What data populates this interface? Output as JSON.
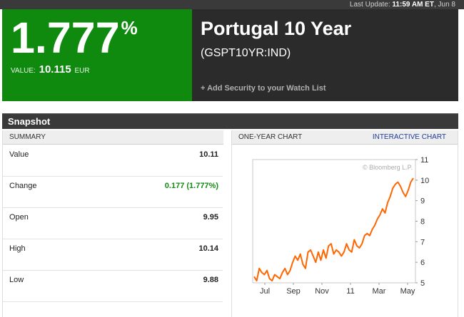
{
  "top_bar": {
    "prefix": "Last Update:",
    "time": "11:59 AM ET",
    "date": ", Jun 8"
  },
  "quote": {
    "change_pct": "1.777",
    "pct_symbol": "%",
    "value_label": "VALUE:",
    "value": "10.115",
    "currency": "EUR"
  },
  "security": {
    "name": "Portugal 10 Year",
    "ticker": "(GSPT10YR:IND)",
    "watch_link": "+ Add Security to your Watch List"
  },
  "snapshot": {
    "title": "Snapshot",
    "summary_header": "SUMMARY",
    "rows": [
      {
        "label": "Value",
        "value": "10.11"
      },
      {
        "label": "Change",
        "value": "0.177 (1.777%)"
      },
      {
        "label": "Open",
        "value": "9.95"
      },
      {
        "label": "High",
        "value": "10.14"
      },
      {
        "label": "Low",
        "value": "9.88"
      }
    ]
  },
  "chart_panel": {
    "header": "ONE-YEAR CHART",
    "link": "INTERACTIVE CHART",
    "watermark": "© Bloomberg L.P."
  },
  "colors": {
    "green_panel": "#0f8a0f",
    "dark_panel": "#2b2b2b",
    "positive": "#138a13",
    "line": "#ff6600",
    "link": "#1f3d99"
  },
  "chart_data": {
    "type": "line",
    "title": "",
    "xlabel": "",
    "ylabel": "",
    "x_tick_labels": [
      "Jul",
      "Sep",
      "Nov",
      "11",
      "Mar",
      "May"
    ],
    "y_ticks": [
      5,
      6,
      7,
      8,
      9,
      10,
      11
    ],
    "ylim": [
      5,
      11
    ],
    "grid": false,
    "series": [
      {
        "values": [
          5.3,
          5.1,
          5.7,
          5.5,
          5.4,
          5.6,
          5.2,
          5.1,
          5.4,
          5.3,
          5.2,
          5.5,
          5.7,
          5.4,
          5.6,
          6.0,
          6.3,
          6.1,
          6.4,
          5.9,
          5.7,
          6.5,
          6.6,
          6.3,
          6.0,
          6.5,
          6.1,
          6.6,
          6.2,
          6.8,
          6.9,
          6.4,
          6.6,
          6.5,
          6.3,
          6.5,
          6.9,
          6.6,
          6.5,
          7.1,
          6.8,
          6.7,
          6.9,
          7.3,
          7.4,
          7.3,
          7.6,
          7.8,
          8.1,
          8.3,
          8.6,
          8.4,
          8.9,
          9.2,
          9.6,
          9.8,
          9.9,
          9.7,
          9.4,
          9.2,
          9.5,
          9.9,
          10.1
        ]
      }
    ]
  }
}
